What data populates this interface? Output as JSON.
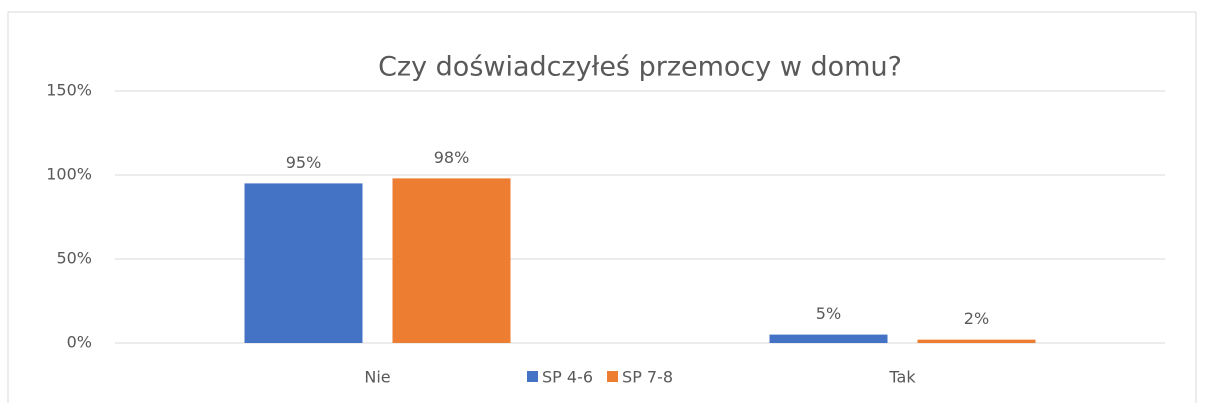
{
  "chart_data": {
    "type": "bar",
    "title": "Czy doświadczyłeś przemocy w domu?",
    "categories": [
      "Nie",
      "Tak"
    ],
    "series": [
      {
        "name": "SP 4-6",
        "color": "#4472c4",
        "values": [
          95,
          5
        ],
        "value_labels": [
          "95%",
          "5%"
        ]
      },
      {
        "name": "SP 7-8",
        "color": "#ed7d31",
        "values": [
          98,
          2
        ],
        "value_labels": [
          "98%",
          "2%"
        ]
      }
    ],
    "ylim": [
      0,
      150
    ],
    "yticks": [
      {
        "value": 0,
        "label": "0%"
      },
      {
        "value": 50,
        "label": "50%"
      },
      {
        "value": 100,
        "label": "100%"
      },
      {
        "value": 150,
        "label": "150%"
      }
    ],
    "grid": true,
    "legend": "bottom"
  }
}
